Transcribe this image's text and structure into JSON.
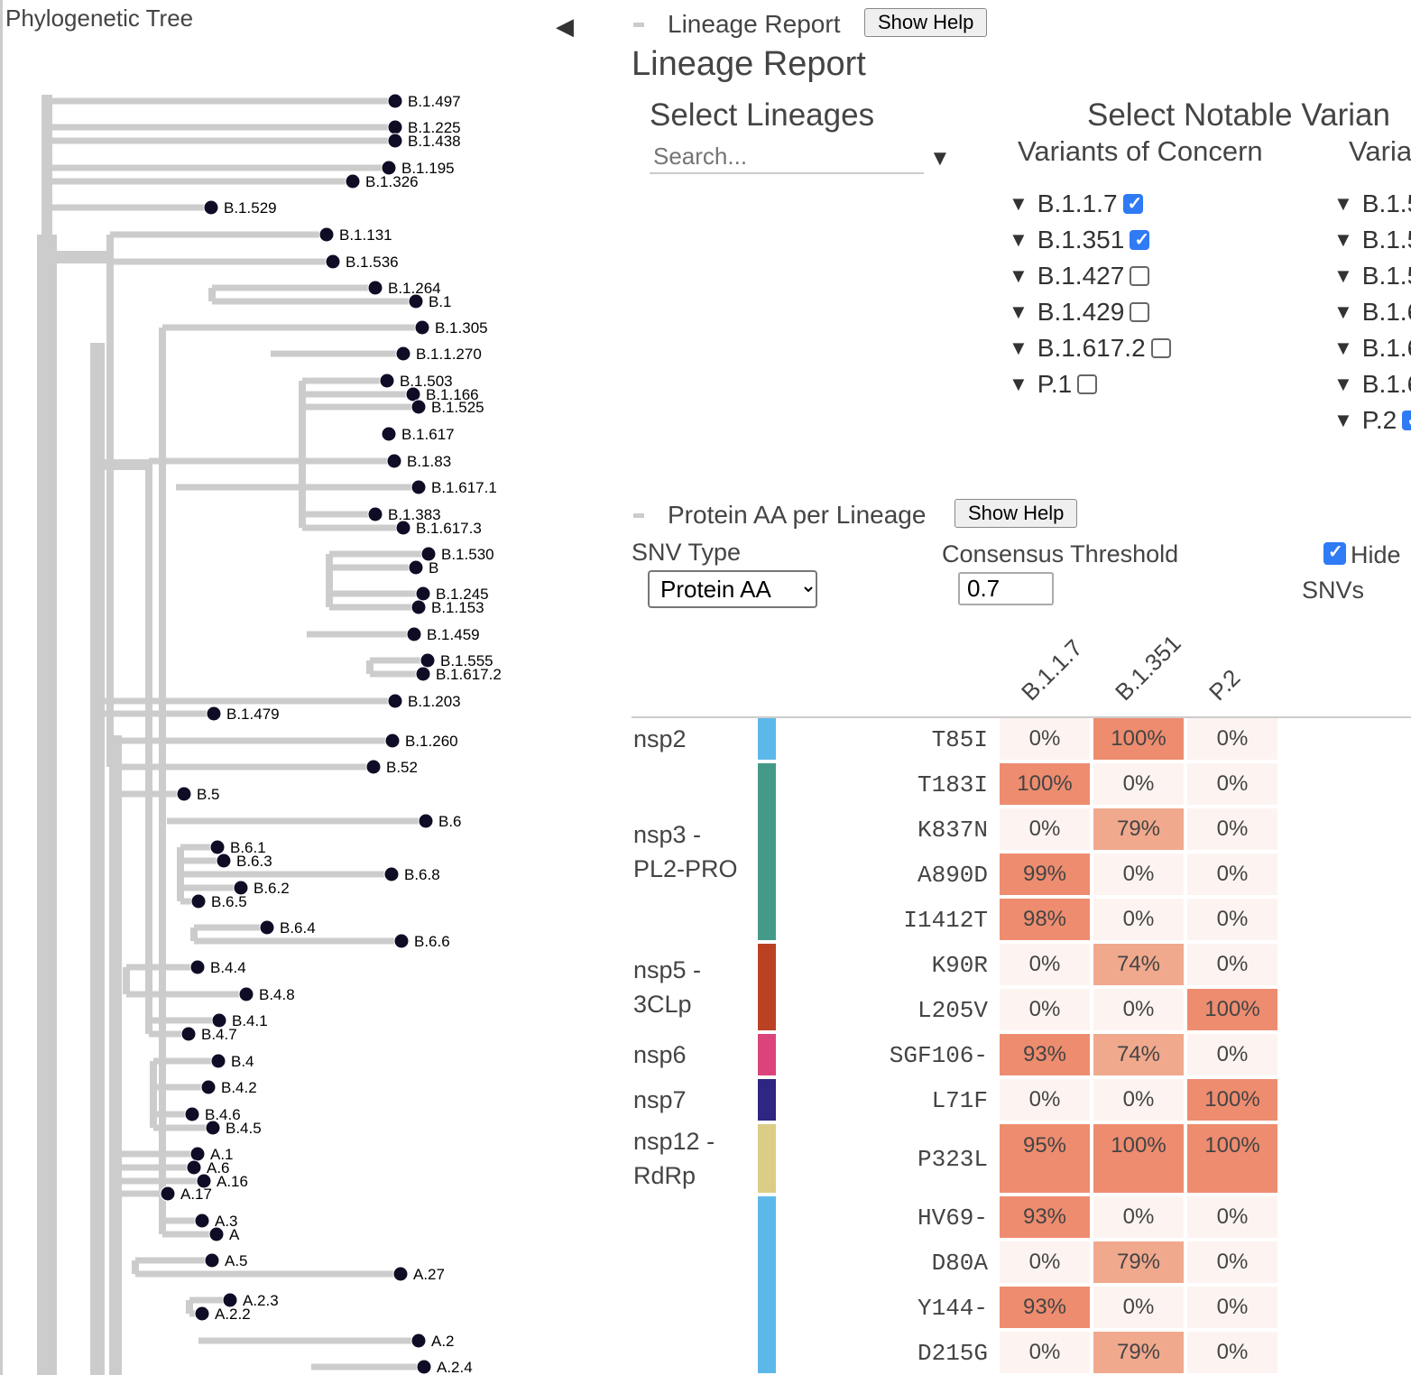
{
  "tree": {
    "title": "Phylogenetic Tree",
    "branch_color": "#cccccc",
    "node_color": "#0f0c26",
    "leaves": [
      "B.1.497",
      "B.1.225",
      "B.1.438",
      "B.1.195",
      "B.1.326",
      "B.1.529",
      "B.1.131",
      "B.1.536",
      "B.1.264",
      "B.1",
      "B.1.305",
      "B.1.1.270",
      "B.1.503",
      "B.1.166",
      "B.1.525",
      "B.1.617",
      "B.1.83",
      "B.1.617.1",
      "B.1.383",
      "B.1.617.3",
      "B.1.530",
      "B",
      "B.1.245",
      "B.1.153",
      "B.1.459",
      "B.1.555",
      "B.1.617.2",
      "B.1.203",
      "B.1.479",
      "B.1.260",
      "B.52",
      "B.5",
      "B.6",
      "B.6.1",
      "B.6.3",
      "B.6.8",
      "B.6.2",
      "B.6.5",
      "B.6.4",
      "B.6.6",
      "B.4.4",
      "B.4.8",
      "B.4.1",
      "B.4.7",
      "B.4",
      "B.4.2",
      "B.4.6",
      "B.4.5",
      "A.1",
      "A.6",
      "A.16",
      "A.17",
      "A.3",
      "A",
      "A.5",
      "A.27",
      "A.2.3",
      "A.2.2",
      "A.2",
      "A.2.4"
    ]
  },
  "collapse_icon": "triangle-left-icon",
  "lineage_report": {
    "section_title": "Lineage Report",
    "help_label": "Show Help",
    "title": "Lineage Report",
    "select_lineages": "Select Lineages",
    "search_placeholder": "Search...",
    "select_notable": "Select Notable Varian",
    "voc_title": "Variants of Concern",
    "voi_title": "Varia",
    "voc": [
      {
        "label": "B.1.1.7",
        "checked": true
      },
      {
        "label": "B.1.351",
        "checked": true
      },
      {
        "label": "B.1.427",
        "checked": false
      },
      {
        "label": "B.1.429",
        "checked": false
      },
      {
        "label": "B.1.617.2",
        "checked": false
      },
      {
        "label": "P.1",
        "checked": false
      }
    ],
    "voi": [
      {
        "label": "B.1.5"
      },
      {
        "label": "B.1.5"
      },
      {
        "label": "B.1.5"
      },
      {
        "label": "B.1.6"
      },
      {
        "label": "B.1.6"
      },
      {
        "label": "B.1.6"
      },
      {
        "label": "P.2",
        "checked": true
      }
    ]
  },
  "protein_aa": {
    "section_title": "Protein AA per Lineage",
    "help_label": "Show Help",
    "snv_type_label": "SNV Type",
    "snv_type_value": "Protein AA",
    "threshold_label": "Consensus Threshold",
    "threshold_value": "0.7",
    "hide_label": "Hide",
    "snvs_label": "SNVs",
    "hide_checked": true,
    "columns": [
      "B.1.1.7",
      "B.1.351",
      "P.2"
    ],
    "colors": {
      "high": "#ee8c6f",
      "mid": "#f1a98e",
      "low": "#fdf4f1"
    },
    "proteins": [
      {
        "name": "nsp2",
        "color": "#5db8ea",
        "rows": [
          {
            "mut": "T85I",
            "vals": [
              "0%",
              "100%",
              "0%"
            ]
          }
        ]
      },
      {
        "name": "nsp3 -\nPL2-PRO",
        "color": "#449a88",
        "rows": [
          {
            "mut": "T183I",
            "vals": [
              "100%",
              "0%",
              "0%"
            ]
          },
          {
            "mut": "K837N",
            "vals": [
              "0%",
              "79%",
              "0%"
            ]
          },
          {
            "mut": "A890D",
            "vals": [
              "99%",
              "0%",
              "0%"
            ]
          },
          {
            "mut": "I1412T",
            "vals": [
              "98%",
              "0%",
              "0%"
            ]
          }
        ]
      },
      {
        "name": "nsp5 -\n3CLp",
        "color": "#bb4124",
        "rows": [
          {
            "mut": "K90R",
            "vals": [
              "0%",
              "74%",
              "0%"
            ]
          },
          {
            "mut": "L205V",
            "vals": [
              "0%",
              "0%",
              "100%"
            ]
          }
        ]
      },
      {
        "name": "nsp6",
        "color": "#db447a",
        "rows": [
          {
            "mut": "SGF106-",
            "vals": [
              "93%",
              "74%",
              "0%"
            ]
          }
        ]
      },
      {
        "name": "nsp7",
        "color": "#2e2682",
        "rows": [
          {
            "mut": "L71F",
            "vals": [
              "0%",
              "0%",
              "100%"
            ]
          }
        ]
      },
      {
        "name": "nsp12 -\nRdRp",
        "color": "#dccd86",
        "tall": true,
        "rows": [
          {
            "mut": "P323L",
            "vals": [
              "95%",
              "100%",
              "100%"
            ]
          }
        ]
      },
      {
        "name": "",
        "color": "#5db8ea",
        "rows": [
          {
            "mut": "HV69-",
            "vals": [
              "93%",
              "0%",
              "0%"
            ]
          },
          {
            "mut": "D80A",
            "vals": [
              "0%",
              "79%",
              "0%"
            ]
          },
          {
            "mut": "Y144-",
            "vals": [
              "93%",
              "0%",
              "0%"
            ]
          },
          {
            "mut": "D215G",
            "vals": [
              "0%",
              "79%",
              "0%"
            ]
          }
        ]
      }
    ]
  }
}
